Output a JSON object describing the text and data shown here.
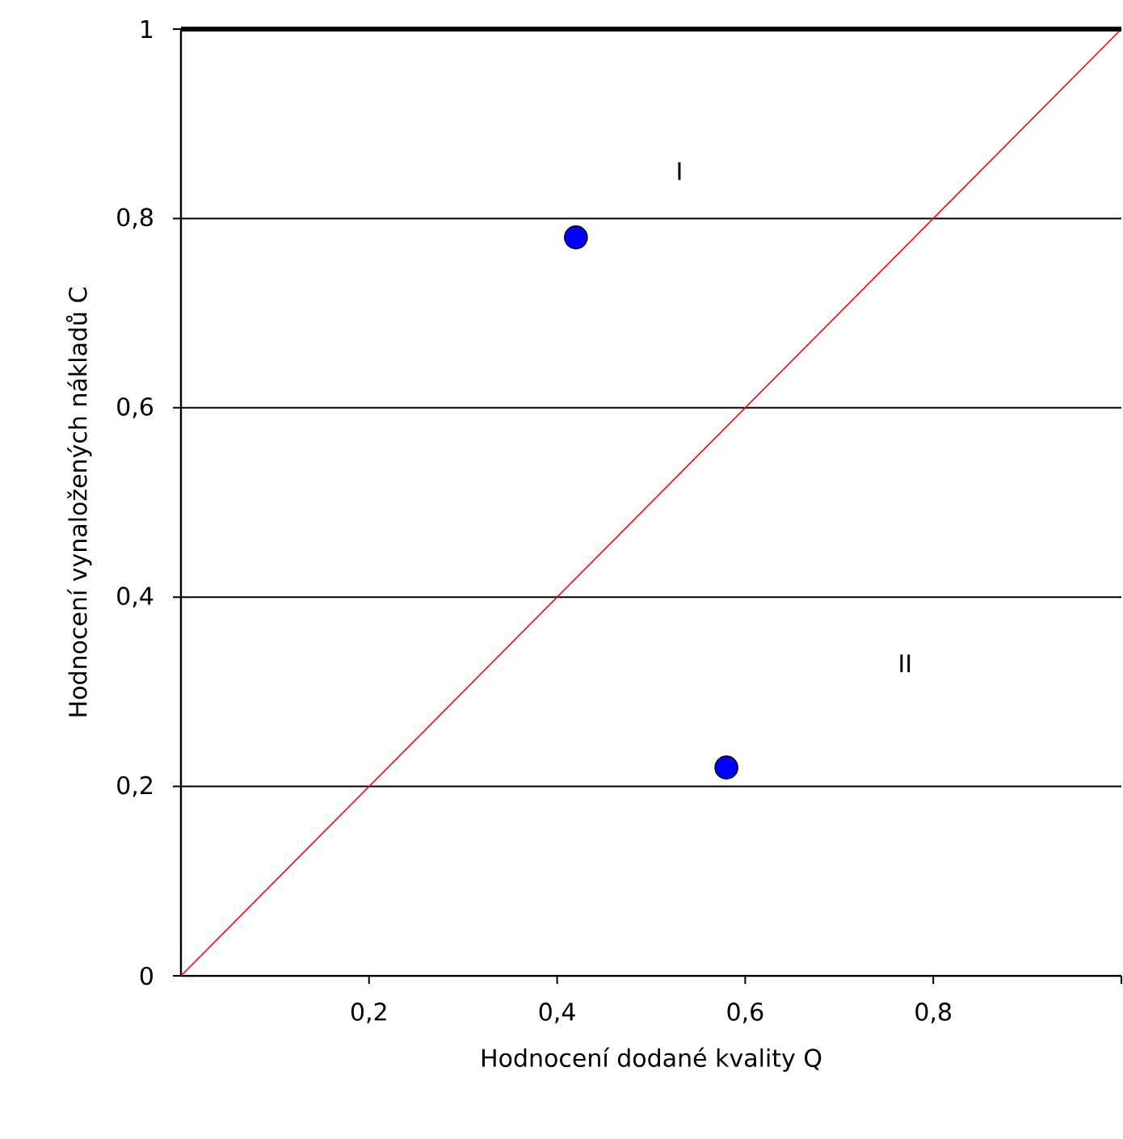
{
  "chart_data": {
    "type": "scatter",
    "xlabel": "Hodnocení dodané kvality Q",
    "ylabel": "Hodnocení vynaložených nákladů C",
    "series": [
      {
        "x": [
          0.42,
          0.58
        ],
        "values": [
          0.78,
          0.22
        ],
        "color": "#0000ff",
        "marker": "circle"
      },
      {
        "type": "line",
        "x": [
          0,
          1
        ],
        "values": [
          0,
          1
        ],
        "color": "#ff0000",
        "marker": "none",
        "line_style": "solid"
      }
    ],
    "xlim": [
      0,
      1
    ],
    "ylim": [
      0,
      1
    ],
    "xticks": [
      {
        "value": 0.2,
        "label": "0,2"
      },
      {
        "value": 0.4,
        "label": "0,4"
      },
      {
        "value": 0.6,
        "label": "0,6"
      },
      {
        "value": 0.8,
        "label": "0,8"
      },
      {
        "value": 1,
        "label": null
      }
    ],
    "yticks": [
      0,
      {
        "value": 0.2,
        "label": "0,2"
      },
      {
        "value": 0.4,
        "label": "0,4"
      },
      {
        "value": 0.6,
        "label": "0,6"
      },
      {
        "value": 0.8,
        "label": "0,8"
      },
      1
    ],
    "grid": "y",
    "annotations": [
      "I",
      "II"
    ]
  }
}
